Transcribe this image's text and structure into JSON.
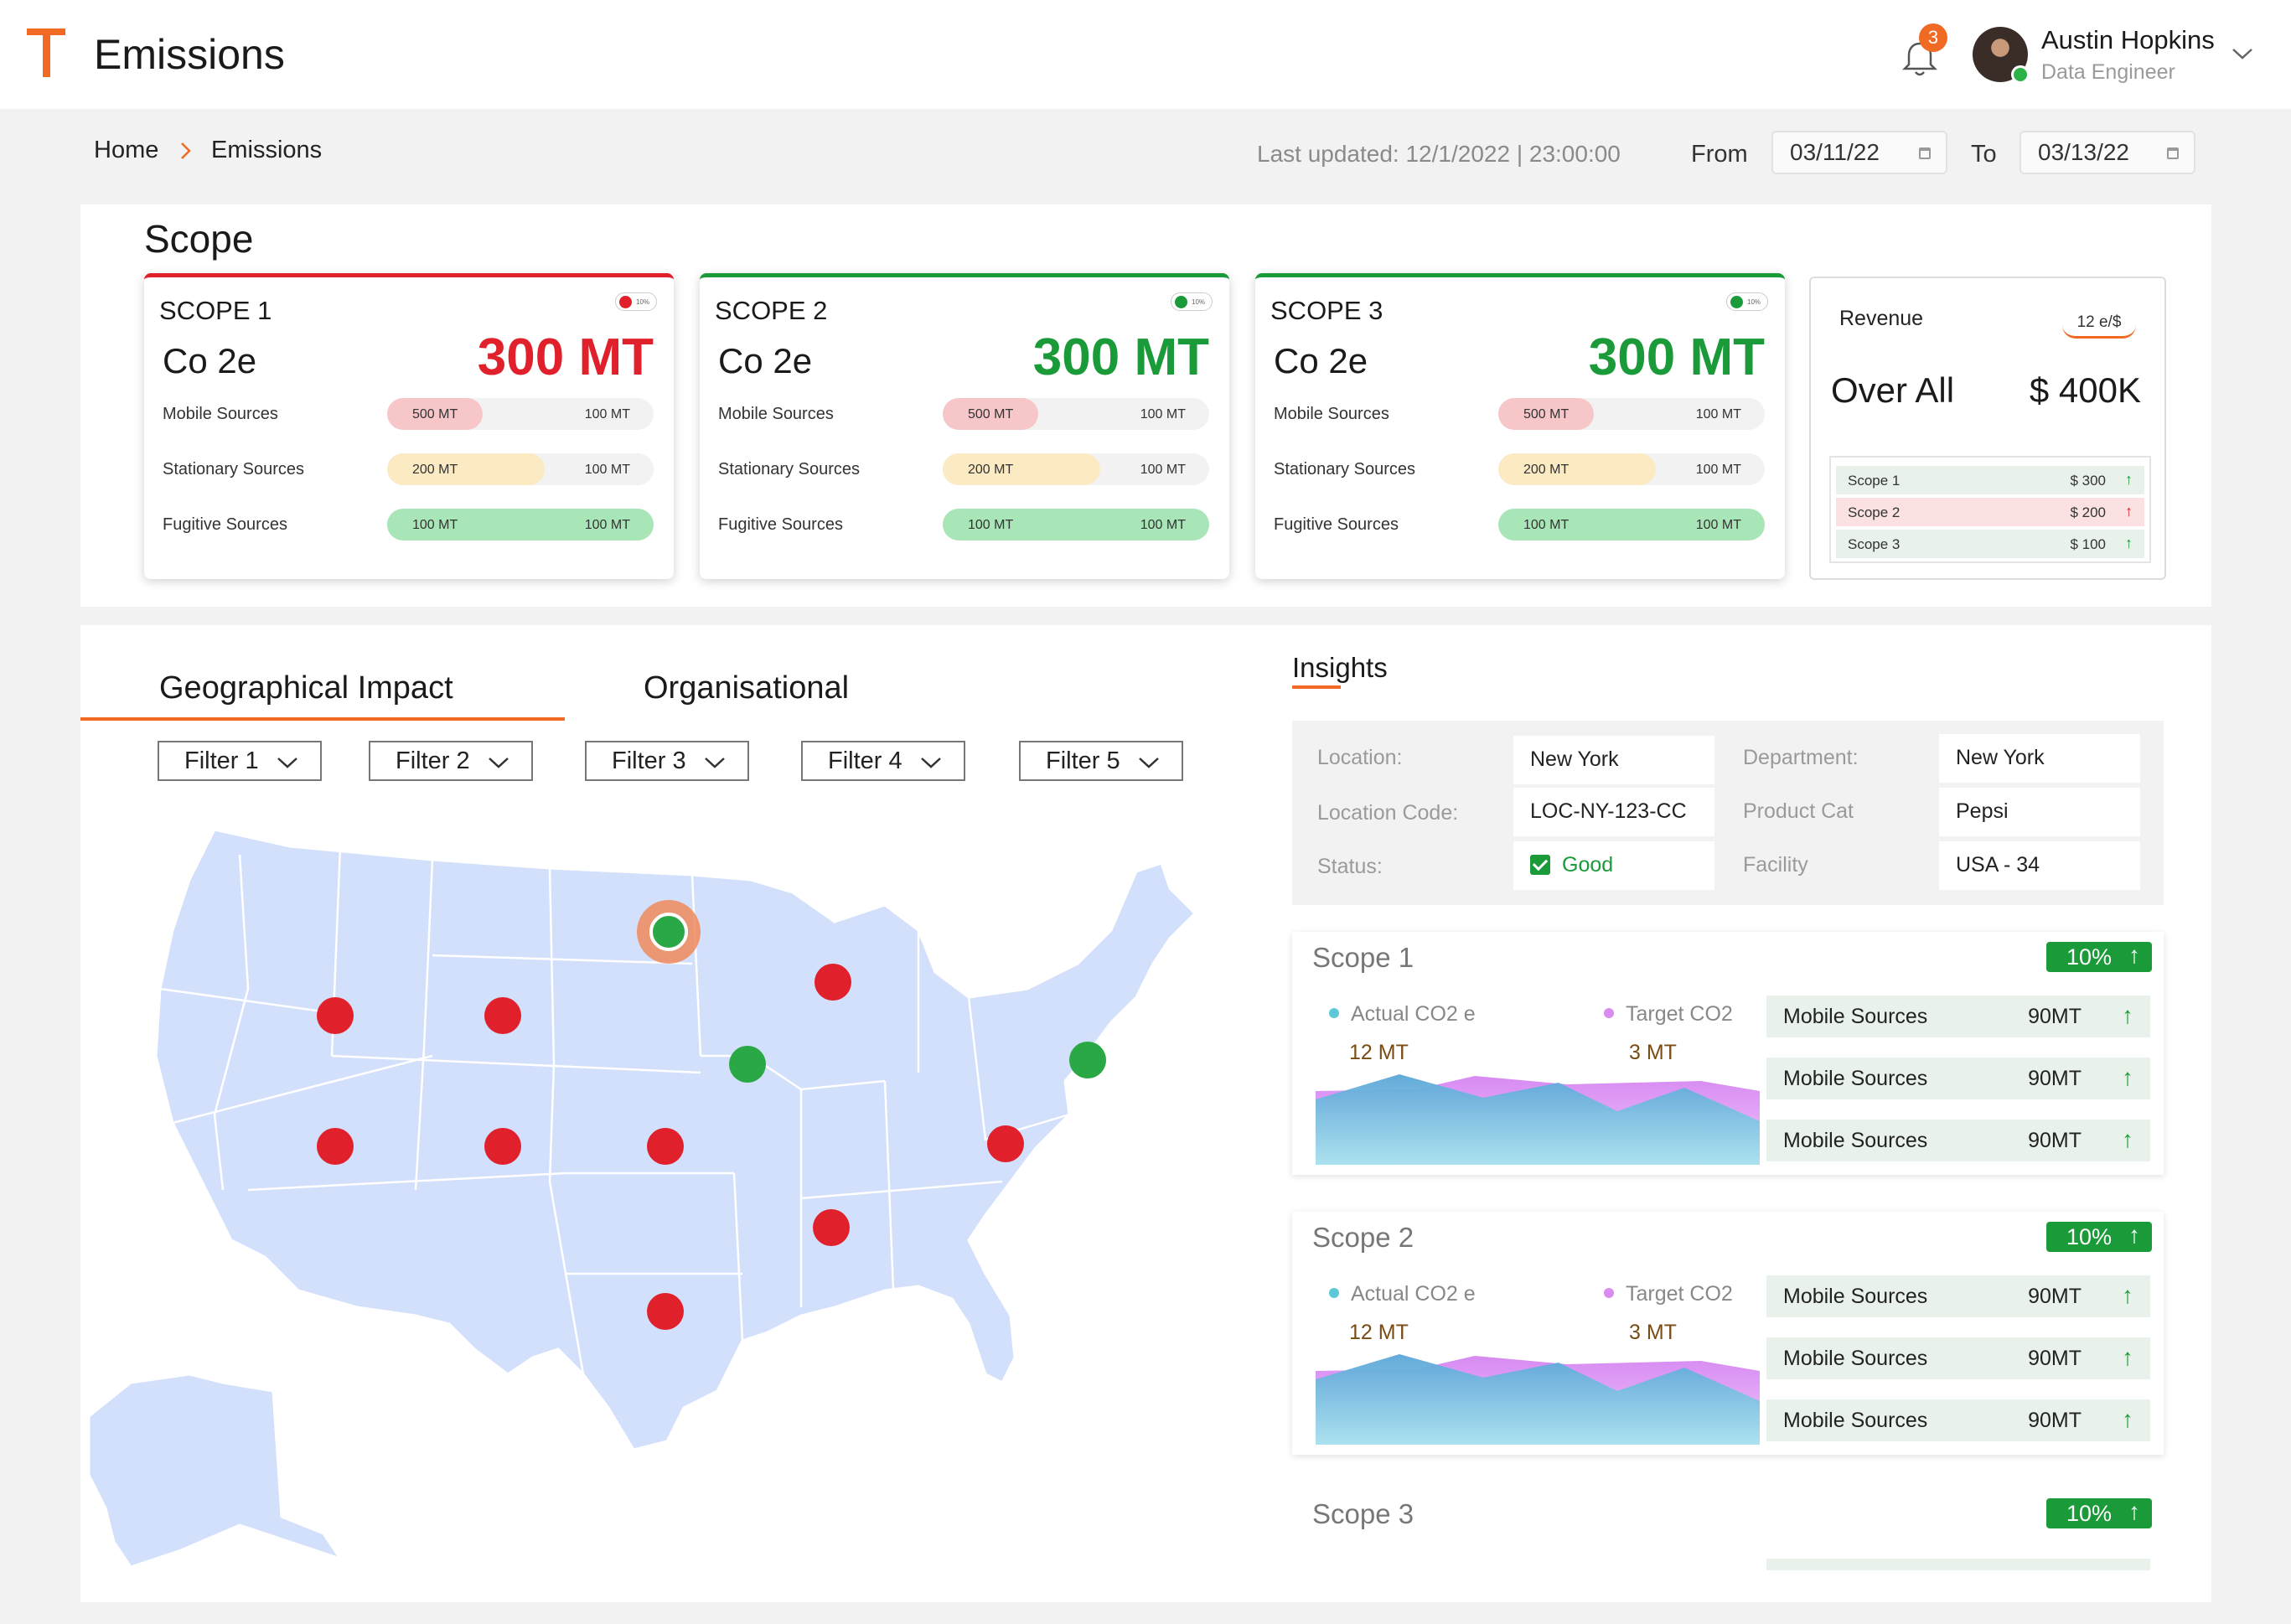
{
  "header": {
    "title": "Emissions",
    "notification_count": "3",
    "user": {
      "name": "Austin Hopkins",
      "role": "Data Engineer"
    }
  },
  "breadcrumb": {
    "home": "Home",
    "current": "Emissions"
  },
  "dates": {
    "last_updated": "Last updated: 12/1/2022 | 23:00:00",
    "from_label": "From",
    "from_value": "03/11/22",
    "to_label": "To",
    "to_value": "03/13/22"
  },
  "scope_section": {
    "heading": "Scope",
    "cards": [
      {
        "title": "SCOPE 1",
        "subtitle": "Co 2e",
        "value": "300 MT",
        "pill": "10%",
        "status_color": "#e0212b",
        "sources": [
          {
            "label": "Mobile Sources",
            "v1": "500 MT",
            "v2": "100 MT",
            "fill": 0.36,
            "color": "#f6c6c8"
          },
          {
            "label": "Stationary Sources",
            "v1": "200 MT",
            "v2": "100 MT",
            "fill": 0.59,
            "color": "#fbeac2"
          },
          {
            "label": "Fugitive Sources",
            "v1": "100 MT",
            "v2": "100 MT",
            "fill": 1.0,
            "color": "#a8e6b8"
          }
        ]
      },
      {
        "title": "SCOPE 2",
        "subtitle": "Co 2e",
        "value": "300 MT",
        "pill": "10%",
        "status_color": "#1b9a3a",
        "sources": [
          {
            "label": "Mobile Sources",
            "v1": "500 MT",
            "v2": "100 MT",
            "fill": 0.36,
            "color": "#f6c6c8"
          },
          {
            "label": "Stationary Sources",
            "v1": "200 MT",
            "v2": "100 MT",
            "fill": 0.59,
            "color": "#fbeac2"
          },
          {
            "label": "Fugitive Sources",
            "v1": "100 MT",
            "v2": "100 MT",
            "fill": 1.0,
            "color": "#a8e6b8"
          }
        ]
      },
      {
        "title": "SCOPE 3",
        "subtitle": "Co 2e",
        "value": "300 MT",
        "pill": "10%",
        "status_color": "#1b9a3a",
        "sources": [
          {
            "label": "Mobile Sources",
            "v1": "500 MT",
            "v2": "100 MT",
            "fill": 0.36,
            "color": "#f6c6c8"
          },
          {
            "label": "Stationary Sources",
            "v1": "200 MT",
            "v2": "100 MT",
            "fill": 0.59,
            "color": "#fbeac2"
          },
          {
            "label": "Fugitive Sources",
            "v1": "100 MT",
            "v2": "100 MT",
            "fill": 1.0,
            "color": "#a8e6b8"
          }
        ]
      }
    ],
    "revenue": {
      "label": "Revenue",
      "rate": "12 e/$",
      "over_label": "Over All",
      "total": "$ 400K",
      "rows": [
        {
          "name": "Scope 1",
          "value": "$ 300",
          "bg": "#e9f2ea",
          "arrow_color": "#1b9a3a"
        },
        {
          "name": "Scope 2",
          "value": "$ 200",
          "bg": "#fbe1e1",
          "arrow_color": "#e0212b"
        },
        {
          "name": "Scope 3",
          "value": "$ 100",
          "bg": "#e9f2ea",
          "arrow_color": "#1b9a3a"
        }
      ]
    }
  },
  "map_section": {
    "tabs": [
      "Geographical Impact",
      "Organisational"
    ],
    "filters": [
      "Filter 1",
      "Filter 2",
      "Filter 3",
      "Filter 4",
      "Filter 5"
    ]
  },
  "insights": {
    "title": "Insights",
    "info": {
      "location_label": "Location:",
      "location": "New York",
      "location_code_label": "Location Code:",
      "location_code": "LOC-NY-123-CC",
      "status_label": "Status:",
      "status": "Good",
      "department_label": "Department:",
      "department": "New York",
      "product_label": "Product Cat",
      "product": "Pepsi",
      "facility_label": "Facility",
      "facility": "USA - 34"
    },
    "scopes": [
      {
        "title": "Scope 1",
        "badge": "10%",
        "actual_label": "Actual CO2 e",
        "actual_value": "12 MT",
        "target_label": "Target CO2",
        "target_value": "3 MT",
        "rows": [
          {
            "name": "Mobile Sources",
            "value": "90MT"
          },
          {
            "name": "Mobile Sources",
            "value": "90MT"
          },
          {
            "name": "Mobile Sources",
            "value": "90MT"
          }
        ]
      },
      {
        "title": "Scope 2",
        "badge": "10%",
        "actual_label": "Actual CO2 e",
        "actual_value": "12 MT",
        "target_label": "Target CO2",
        "target_value": "3 MT",
        "rows": [
          {
            "name": "Mobile Sources",
            "value": "90MT"
          },
          {
            "name": "Mobile Sources",
            "value": "90MT"
          },
          {
            "name": "Mobile Sources",
            "value": "90MT"
          }
        ]
      },
      {
        "title": "Scope 3",
        "badge": "10%"
      }
    ]
  },
  "colors": {
    "accent": "#f06a23",
    "good": "#1b9a3a",
    "bad": "#e0212b",
    "map_fill": "#d3e0fb"
  }
}
